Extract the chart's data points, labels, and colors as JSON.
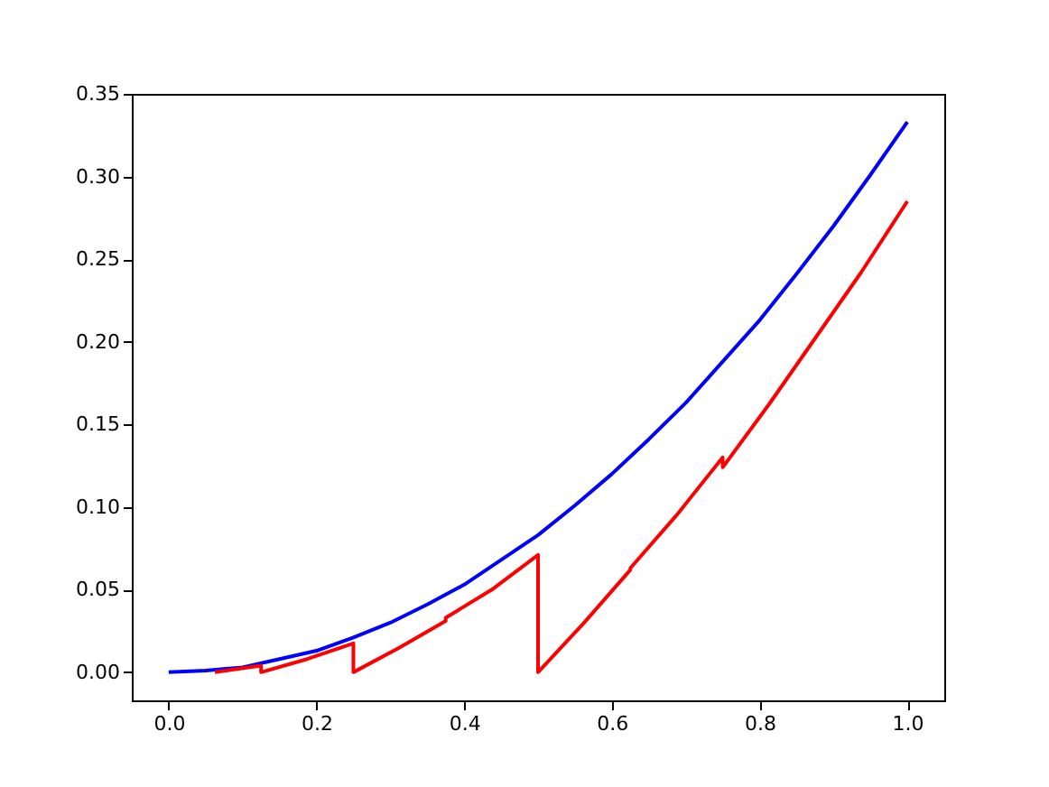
{
  "chart_data": {
    "type": "line",
    "xlim": [
      -0.05,
      1.05
    ],
    "ylim": [
      -0.017,
      0.35
    ],
    "xticks": [
      {
        "value": 0,
        "label": "0.0"
      },
      {
        "value": 0.2,
        "label": "0.2"
      },
      {
        "value": 0.4,
        "label": "0.4"
      },
      {
        "value": 0.6,
        "label": "0.6"
      },
      {
        "value": 0.8,
        "label": "0.8"
      },
      {
        "value": 1,
        "label": "1.0"
      }
    ],
    "yticks": [
      {
        "value": 0,
        "label": "0.00"
      },
      {
        "value": 0.05,
        "label": "0.05"
      },
      {
        "value": 0.1,
        "label": "0.10"
      },
      {
        "value": 0.15,
        "label": "0.15"
      },
      {
        "value": 0.2,
        "label": "0.20"
      },
      {
        "value": 0.25,
        "label": "0.25"
      },
      {
        "value": 0.3,
        "label": "0.30"
      },
      {
        "value": 0.35,
        "label": "0.35"
      }
    ],
    "grid": false,
    "legend": false,
    "marker": "none",
    "line_style": "solid",
    "series": [
      {
        "color": "#0000ff",
        "x": [
          0,
          0.05,
          0.1,
          0.15,
          0.2,
          0.25,
          0.3,
          0.35,
          0.4,
          0.45,
          0.5,
          0.55,
          0.6,
          0.65,
          0.7,
          0.75,
          0.8,
          0.85,
          0.9,
          0.95,
          1
        ],
        "values": [
          0,
          0.001,
          0.003,
          0.008,
          0.013,
          0.021,
          0.03,
          0.041,
          0.053,
          0.068,
          0.083,
          0.101,
          0.12,
          0.141,
          0.163,
          0.188,
          0.213,
          0.241,
          0.27,
          0.301,
          0.333
        ]
      },
      {
        "color": "#ff0000",
        "x": [
          0.0625,
          0.125,
          0.125,
          0.1875,
          0.25,
          0.25,
          0.3125,
          0.375,
          0.375,
          0.4375,
          0.5,
          0.5,
          0.5625,
          0.625,
          0.625,
          0.6875,
          0.75,
          0.75,
          0.8125,
          0.875,
          0.9375,
          1
        ],
        "values": [
          0,
          0.004,
          0,
          0.008,
          0.0175,
          0,
          0.015,
          0.031,
          0.033,
          0.05,
          0.071,
          0,
          0.03,
          0.062,
          0.063,
          0.095,
          0.13,
          0.124,
          0.162,
          0.202,
          0.242,
          0.285
        ]
      }
    ]
  }
}
